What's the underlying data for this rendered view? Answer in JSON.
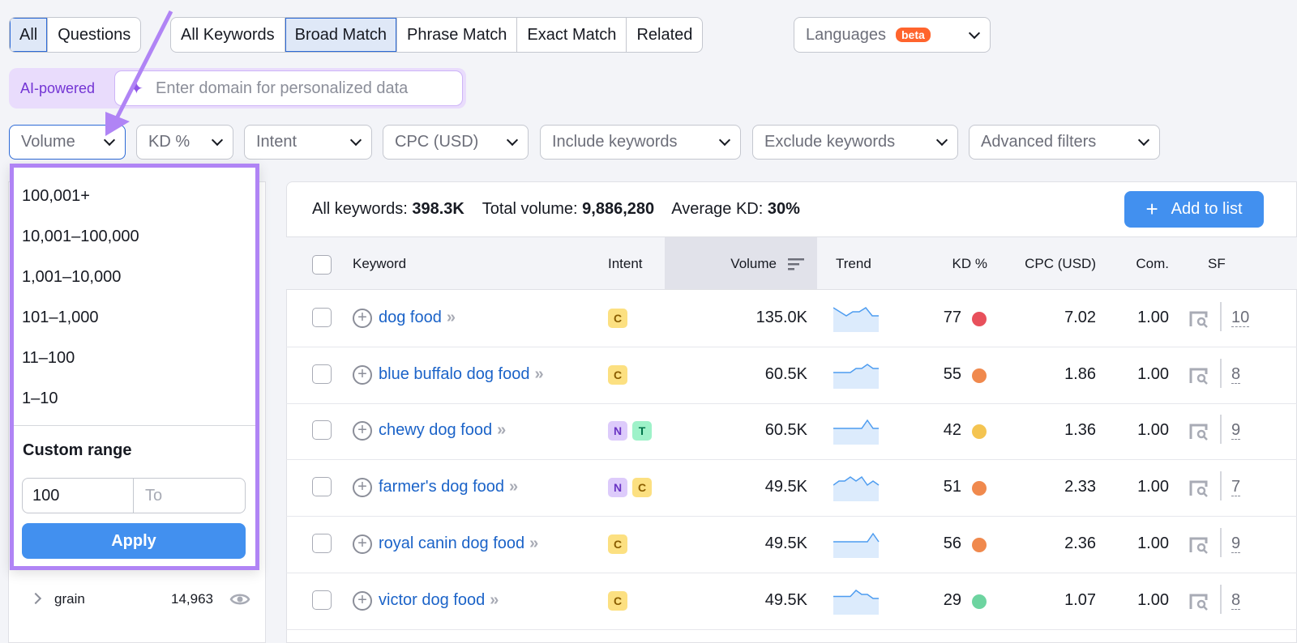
{
  "tabs_group1": [
    {
      "label": "All",
      "active": true
    },
    {
      "label": "Questions",
      "active": false
    }
  ],
  "tabs_group2": [
    {
      "label": "All Keywords",
      "active": false
    },
    {
      "label": "Broad Match",
      "active": true
    },
    {
      "label": "Phrase Match",
      "active": false
    },
    {
      "label": "Exact Match",
      "active": false
    },
    {
      "label": "Related",
      "active": false
    }
  ],
  "languages": {
    "label": "Languages",
    "badge": "beta"
  },
  "ai": {
    "label": "AI-powered",
    "placeholder": "Enter domain for personalized data"
  },
  "filters": [
    "Volume",
    "KD %",
    "Intent",
    "CPC (USD)",
    "Include keywords",
    "Exclude keywords",
    "Advanced filters"
  ],
  "volume_dropdown": {
    "options": [
      "100,001+",
      "10,001–100,000",
      "1,001–10,000",
      "101–1,000",
      "11–100",
      "1–10"
    ],
    "custom_range_label": "Custom range",
    "from_value": "100",
    "to_placeholder": "To",
    "apply_label": "Apply"
  },
  "sidebar": {
    "item": {
      "label": "grain",
      "count": "14,963"
    }
  },
  "summary": {
    "all_keywords_label": "All keywords:",
    "all_keywords": "398.3K",
    "total_volume_label": "Total volume:",
    "total_volume": "9,886,280",
    "avg_kd_label": "Average KD:",
    "avg_kd": "30%",
    "add_to_list": "Add to list"
  },
  "columns": [
    "Keyword",
    "Intent",
    "Volume",
    "Trend",
    "KD %",
    "CPC (USD)",
    "Com.",
    "SF"
  ],
  "colors": {
    "accent": "#4290ef",
    "highlight": "#b084f5",
    "kd_hard": "#e8505b",
    "kd_mid": "#f0894d",
    "kd_easy": "#f4c451",
    "kd_veryeasy": "#6dd4a0"
  },
  "rows": [
    {
      "keyword": "dog food",
      "intent": [
        "C"
      ],
      "volume": "135.0K",
      "trend": [
        6,
        5,
        4,
        5,
        5,
        6,
        4,
        4
      ],
      "kd": "77",
      "kd_color": "#e8505b",
      "cpc": "7.02",
      "com": "1.00",
      "sf": "10"
    },
    {
      "keyword": "blue buffalo dog food",
      "intent": [
        "C"
      ],
      "volume": "60.5K",
      "trend": [
        3,
        3,
        3,
        3,
        4,
        4,
        5,
        4,
        4
      ],
      "kd": "55",
      "kd_color": "#f0894d",
      "cpc": "1.86",
      "com": "1.00",
      "sf": "8"
    },
    {
      "keyword": "chewy dog food",
      "intent": [
        "N",
        "T"
      ],
      "volume": "60.5K",
      "trend": [
        4,
        4,
        4,
        4,
        4,
        4,
        5,
        4,
        4
      ],
      "kd": "42",
      "kd_color": "#f4c451",
      "cpc": "1.36",
      "com": "1.00",
      "sf": "9"
    },
    {
      "keyword": "farmer's dog food",
      "intent": [
        "N",
        "C"
      ],
      "volume": "49.5K",
      "trend": [
        3,
        4,
        4,
        5,
        4,
        5,
        3,
        4,
        3
      ],
      "kd": "51",
      "kd_color": "#f0894d",
      "cpc": "2.33",
      "com": "1.00",
      "sf": "7"
    },
    {
      "keyword": "royal canin dog food",
      "intent": [
        "C"
      ],
      "volume": "49.5K",
      "trend": [
        4,
        4,
        4,
        4,
        4,
        4,
        4,
        5,
        4
      ],
      "kd": "56",
      "kd_color": "#f0894d",
      "cpc": "2.36",
      "com": "1.00",
      "sf": "9"
    },
    {
      "keyword": "victor dog food",
      "intent": [
        "C"
      ],
      "volume": "49.5K",
      "trend": [
        3,
        3,
        3,
        3,
        6,
        4,
        4,
        2,
        2
      ],
      "kd": "29",
      "kd_color": "#6dd4a0",
      "cpc": "1.07",
      "com": "1.00",
      "sf": "8"
    }
  ]
}
